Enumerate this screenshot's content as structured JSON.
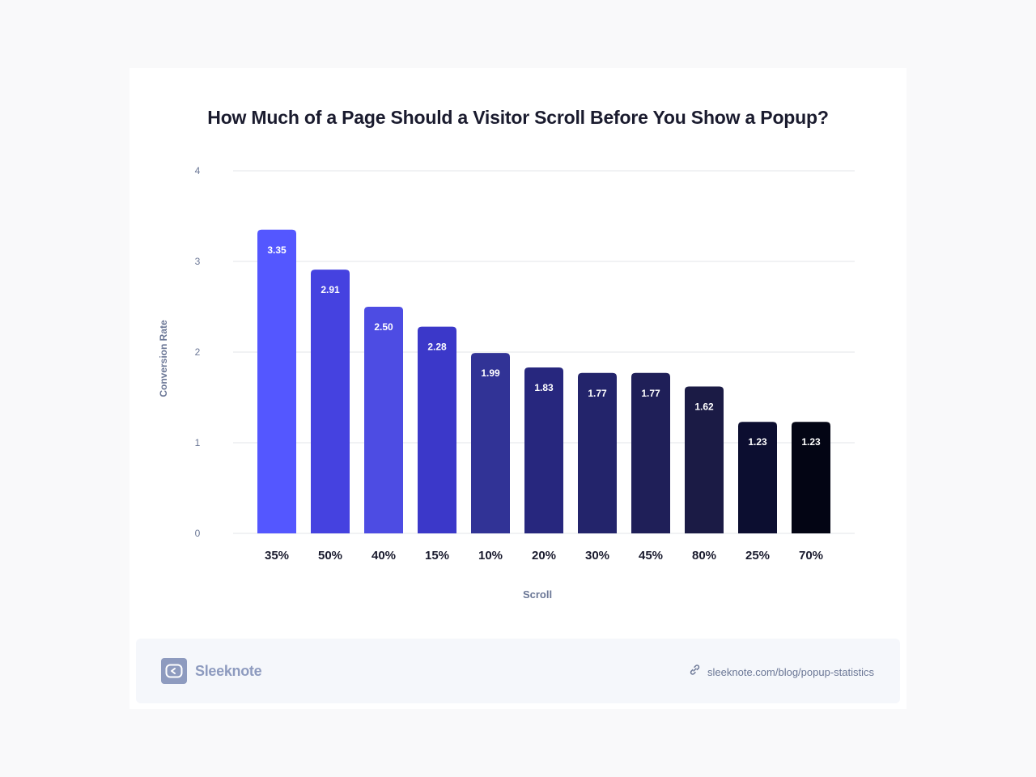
{
  "chart_data": {
    "type": "bar",
    "title": "How Much of a Page Should a Visitor Scroll Before You Show a Popup?",
    "xlabel": "Scroll",
    "ylabel": "Conversion Rate",
    "ylim": [
      0,
      4
    ],
    "yticks": [
      "0",
      "1",
      "2",
      "3",
      "4"
    ],
    "grid": true,
    "categories": [
      "35%",
      "50%",
      "40%",
      "15%",
      "10%",
      "20%",
      "30%",
      "45%",
      "80%",
      "25%",
      "70%"
    ],
    "values": [
      3.35,
      2.91,
      2.5,
      2.28,
      1.99,
      1.83,
      1.77,
      1.77,
      1.62,
      1.23,
      1.23
    ],
    "value_labels": [
      "3.35",
      "2.91",
      "2.50",
      "2.28",
      "1.99",
      "1.83",
      "1.77",
      "1.77",
      "1.62",
      "1.23",
      "1.23"
    ],
    "colors": [
      "#5457ff",
      "#4542e0",
      "#4d4ce3",
      "#3b38c9",
      "#313396",
      "#27277e",
      "#23246b",
      "#1f1f58",
      "#1b1b45",
      "#0c0e30",
      "#030514"
    ]
  },
  "footer": {
    "brand": "Sleeknote",
    "brand_icon": "sleeknote-logo-icon",
    "link_icon": "link-icon",
    "source": "sleeknote.com/blog/popup-statistics"
  }
}
